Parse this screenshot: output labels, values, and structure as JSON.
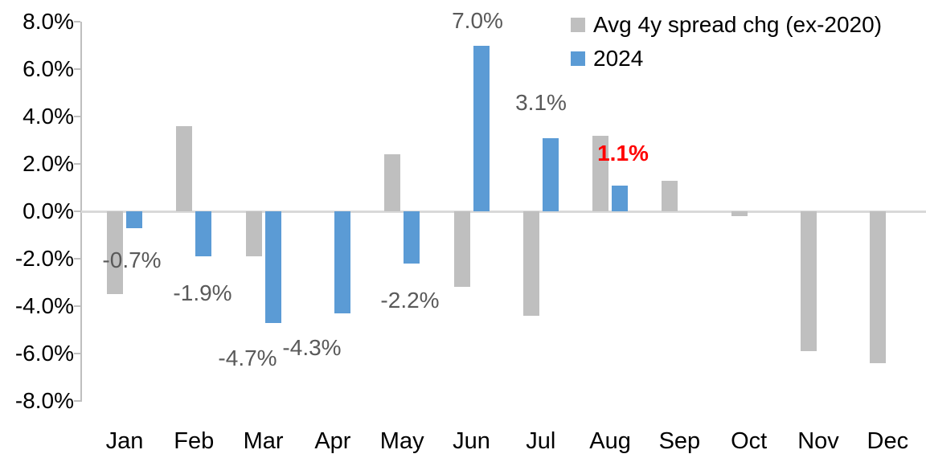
{
  "chart_data": {
    "type": "bar",
    "title": "",
    "categories": [
      "Jan",
      "Feb",
      "Mar",
      "Apr",
      "May",
      "Jun",
      "Jul",
      "Aug",
      "Sep",
      "Oct",
      "Nov",
      "Dec"
    ],
    "series": [
      {
        "name": "Avg 4y spread chg (ex-2020)",
        "color": "#bfbfbf",
        "values": [
          -3.5,
          3.6,
          -1.9,
          0.0,
          2.4,
          -3.2,
          -4.4,
          3.2,
          1.3,
          -0.2,
          -5.9,
          -6.4
        ]
      },
      {
        "name": "2024",
        "color": "#5b9bd5",
        "values": [
          -0.7,
          -1.9,
          -4.7,
          -4.3,
          -2.2,
          7.0,
          3.1,
          1.1,
          null,
          null,
          null,
          null
        ]
      }
    ],
    "value_labels": [
      {
        "text": "-0.7%",
        "series": "2024",
        "category": "Jan",
        "color": "#595959",
        "bold": false
      },
      {
        "text": "-1.9%",
        "series": "2024",
        "category": "Feb",
        "color": "#595959",
        "bold": false
      },
      {
        "text": "-4.7%",
        "series": "2024",
        "category": "Mar",
        "color": "#595959",
        "bold": false
      },
      {
        "text": "-4.3%",
        "series": "2024",
        "category": "Apr",
        "color": "#595959",
        "bold": false
      },
      {
        "text": "-2.2%",
        "series": "2024",
        "category": "May",
        "color": "#595959",
        "bold": false
      },
      {
        "text": "7.0%",
        "series": "2024",
        "category": "Jun",
        "color": "#595959",
        "bold": false
      },
      {
        "text": "3.1%",
        "series": "2024",
        "category": "Jul",
        "color": "#595959",
        "bold": false
      },
      {
        "text": "1.1%",
        "series": "2024",
        "category": "Aug",
        "color": "#ff0000",
        "bold": true
      }
    ],
    "xlabel": "",
    "ylabel": "",
    "ylim": [
      -8,
      8
    ],
    "ytick_labels": [
      "8.0%",
      "6.0%",
      "4.0%",
      "2.0%",
      "0.0%",
      "-2.0%",
      "-4.0%",
      "-6.0%",
      "-8.0%"
    ],
    "ytick_values": [
      8,
      6,
      4,
      2,
      0,
      -2,
      -4,
      -6,
      -8
    ],
    "grid": "baseline-only",
    "legend_position": "top-right"
  },
  "legend": {
    "items": [
      {
        "label": "Avg 4y spread chg (ex-2020)",
        "color": "#bfbfbf"
      },
      {
        "label": "2024",
        "color": "#5b9bd5"
      }
    ]
  },
  "colors": {
    "background": "#ffffff",
    "axis_line": "#bfbfbf",
    "baseline": "#d9d9d9",
    "axis_text": "#000000",
    "data_label": "#595959",
    "highlight_label": "#ff0000"
  }
}
